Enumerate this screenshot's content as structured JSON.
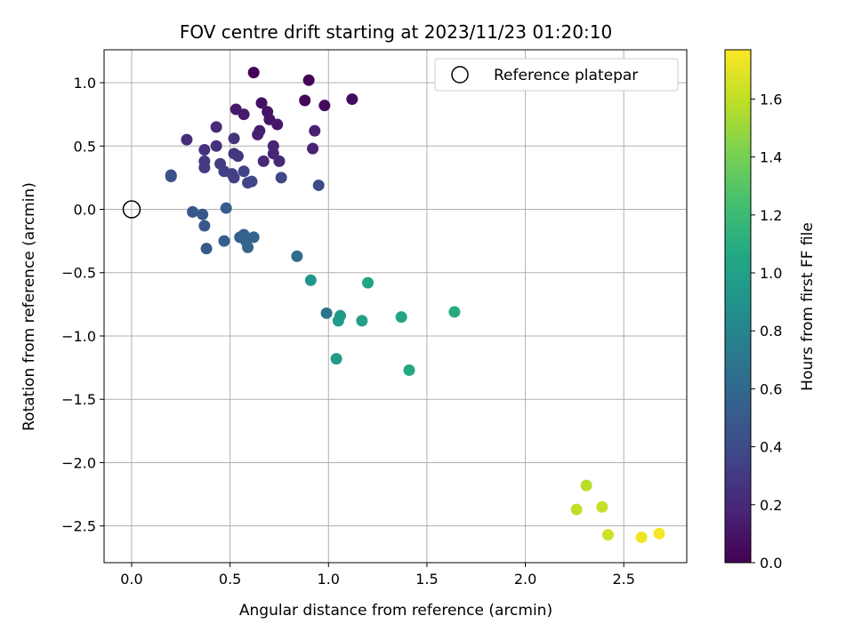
{
  "chart_data": {
    "type": "scatter",
    "title": "FOV centre drift starting at 2023/11/23 01:20:10",
    "xlabel": "Angular distance from reference (arcmin)",
    "ylabel": "Rotation from reference (arcmin)",
    "xlim": [
      -0.14,
      2.82
    ],
    "ylim": [
      -2.79,
      1.26
    ],
    "xticks": [
      0.0,
      0.5,
      1.0,
      1.5,
      2.0,
      2.5
    ],
    "xtick_labels": [
      "0.0",
      "0.5",
      "1.0",
      "1.5",
      "2.0",
      "2.5"
    ],
    "yticks": [
      1.0,
      0.5,
      0.0,
      -0.5,
      -1.0,
      -1.5,
      -2.0,
      -2.5
    ],
    "ytick_labels": [
      "1.0",
      "0.5",
      "0.0",
      "−0.5",
      "−1.0",
      "−1.5",
      "−2.0",
      "−2.5"
    ],
    "grid": true,
    "legend": {
      "position": "top-right",
      "entries": [
        "Reference platepar"
      ]
    },
    "reference_point": {
      "x": 0.0,
      "y": 0.0
    },
    "colorbar": {
      "label": "Hours from first FF file",
      "range": [
        0.0,
        1.77
      ],
      "colormap": "viridis",
      "ticks": [
        0.0,
        0.2,
        0.4,
        0.6,
        0.8,
        1.0,
        1.2,
        1.4,
        1.6
      ],
      "tick_labels": [
        "0.0",
        "0.2",
        "0.4",
        "0.6",
        "0.8",
        "1.0",
        "1.2",
        "1.4",
        "1.6"
      ]
    },
    "series": [
      {
        "points": [
          {
            "x": 0.62,
            "y": 1.08,
            "c": 0.01
          },
          {
            "x": 0.9,
            "y": 1.02,
            "c": 0.02
          },
          {
            "x": 0.88,
            "y": 0.86,
            "c": 0.03
          },
          {
            "x": 0.98,
            "y": 0.82,
            "c": 0.04
          },
          {
            "x": 1.12,
            "y": 0.87,
            "c": 0.06
          },
          {
            "x": 0.66,
            "y": 0.84,
            "c": 0.08
          },
          {
            "x": 0.69,
            "y": 0.77,
            "c": 0.09
          },
          {
            "x": 0.7,
            "y": 0.71,
            "c": 0.1
          },
          {
            "x": 0.74,
            "y": 0.67,
            "c": 0.11
          },
          {
            "x": 0.53,
            "y": 0.79,
            "c": 0.12
          },
          {
            "x": 0.57,
            "y": 0.75,
            "c": 0.13
          },
          {
            "x": 0.65,
            "y": 0.62,
            "c": 0.14
          },
          {
            "x": 0.64,
            "y": 0.59,
            "c": 0.15
          },
          {
            "x": 0.93,
            "y": 0.62,
            "c": 0.16
          },
          {
            "x": 0.92,
            "y": 0.48,
            "c": 0.17
          },
          {
            "x": 0.72,
            "y": 0.5,
            "c": 0.18
          },
          {
            "x": 0.72,
            "y": 0.44,
            "c": 0.19
          },
          {
            "x": 0.75,
            "y": 0.38,
            "c": 0.2
          },
          {
            "x": 0.67,
            "y": 0.38,
            "c": 0.21
          },
          {
            "x": 0.43,
            "y": 0.65,
            "c": 0.22
          },
          {
            "x": 0.28,
            "y": 0.55,
            "c": 0.23
          },
          {
            "x": 0.43,
            "y": 0.5,
            "c": 0.24
          },
          {
            "x": 0.37,
            "y": 0.47,
            "c": 0.25
          },
          {
            "x": 0.52,
            "y": 0.56,
            "c": 0.26
          },
          {
            "x": 0.52,
            "y": 0.44,
            "c": 0.27
          },
          {
            "x": 0.54,
            "y": 0.42,
            "c": 0.28
          },
          {
            "x": 0.37,
            "y": 0.38,
            "c": 0.29
          },
          {
            "x": 0.37,
            "y": 0.33,
            "c": 0.3
          },
          {
            "x": 0.45,
            "y": 0.36,
            "c": 0.31
          },
          {
            "x": 0.47,
            "y": 0.3,
            "c": 0.32
          },
          {
            "x": 0.51,
            "y": 0.28,
            "c": 0.33
          },
          {
            "x": 0.52,
            "y": 0.25,
            "c": 0.34
          },
          {
            "x": 0.57,
            "y": 0.3,
            "c": 0.35
          },
          {
            "x": 0.59,
            "y": 0.21,
            "c": 0.36
          },
          {
            "x": 0.61,
            "y": 0.22,
            "c": 0.37
          },
          {
            "x": 0.76,
            "y": 0.25,
            "c": 0.38
          },
          {
            "x": 0.95,
            "y": 0.19,
            "c": 0.4
          },
          {
            "x": 0.2,
            "y": 0.27,
            "c": 0.42
          },
          {
            "x": 0.2,
            "y": 0.26,
            "c": 0.43
          },
          {
            "x": 0.31,
            "y": -0.02,
            "c": 0.47
          },
          {
            "x": 0.36,
            "y": -0.04,
            "c": 0.48
          },
          {
            "x": 0.37,
            "y": -0.13,
            "c": 0.49
          },
          {
            "x": 0.38,
            "y": -0.31,
            "c": 0.5
          },
          {
            "x": 0.48,
            "y": 0.01,
            "c": 0.52
          },
          {
            "x": 0.47,
            "y": -0.25,
            "c": 0.53
          },
          {
            "x": 0.55,
            "y": -0.22,
            "c": 0.54
          },
          {
            "x": 0.57,
            "y": -0.2,
            "c": 0.55
          },
          {
            "x": 0.58,
            "y": -0.25,
            "c": 0.56
          },
          {
            "x": 0.59,
            "y": -0.3,
            "c": 0.57
          },
          {
            "x": 0.62,
            "y": -0.22,
            "c": 0.58
          },
          {
            "x": 0.84,
            "y": -0.37,
            "c": 0.62
          },
          {
            "x": 0.99,
            "y": -0.82,
            "c": 0.67
          },
          {
            "x": 0.91,
            "y": -0.56,
            "c": 0.92
          },
          {
            "x": 1.06,
            "y": -0.84,
            "c": 0.95
          },
          {
            "x": 1.05,
            "y": -0.88,
            "c": 0.96
          },
          {
            "x": 1.04,
            "y": -1.18,
            "c": 0.97
          },
          {
            "x": 1.17,
            "y": -0.88,
            "c": 1.0
          },
          {
            "x": 1.2,
            "y": -0.58,
            "c": 1.02
          },
          {
            "x": 1.37,
            "y": -0.85,
            "c": 1.03
          },
          {
            "x": 1.41,
            "y": -1.27,
            "c": 1.06
          },
          {
            "x": 1.64,
            "y": -0.81,
            "c": 1.08
          },
          {
            "x": 2.31,
            "y": -2.18,
            "c": 1.58
          },
          {
            "x": 2.26,
            "y": -2.37,
            "c": 1.6
          },
          {
            "x": 2.39,
            "y": -2.35,
            "c": 1.62
          },
          {
            "x": 2.42,
            "y": -2.57,
            "c": 1.64
          },
          {
            "x": 2.59,
            "y": -2.59,
            "c": 1.73
          },
          {
            "x": 2.68,
            "y": -2.56,
            "c": 1.75
          }
        ]
      }
    ]
  }
}
